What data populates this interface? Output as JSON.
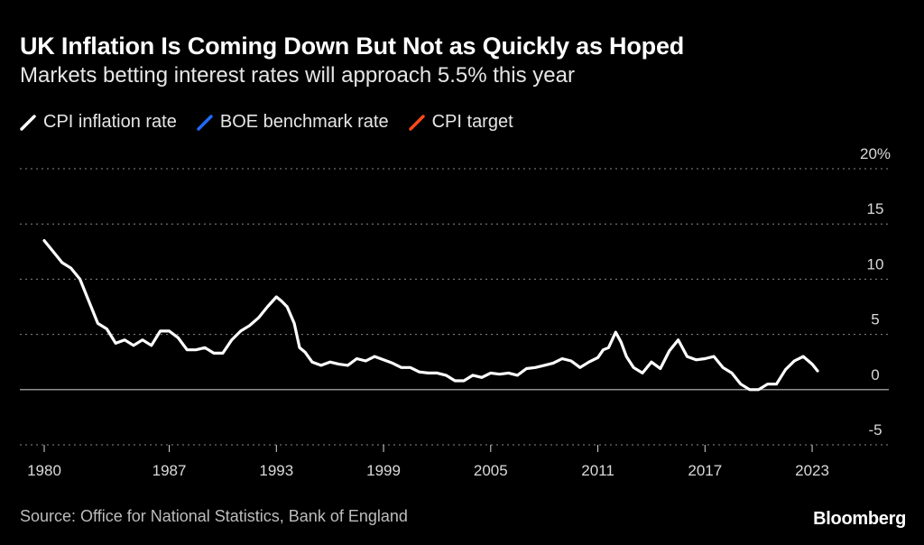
{
  "header": {
    "title": "UK Inflation Is Coming Down But Not as Quickly as Hoped",
    "subtitle": "Markets betting interest rates will approach 5.5% this year"
  },
  "legend": [
    {
      "label": "CPI inflation rate",
      "color": "#ffffff"
    },
    {
      "label": "BOE benchmark rate",
      "color": "#1f6bff"
    },
    {
      "label": "CPI target",
      "color": "#ff4a1a"
    }
  ],
  "footer": {
    "source": "Source: Office for National Statistics, Bank of England",
    "brand": "Bloomberg"
  },
  "chart_data": {
    "type": "line",
    "title": "UK Inflation Is Coming Down But Not as Quickly as Hoped",
    "subtitle": "Markets betting interest rates will approach 5.5% this year",
    "xlabel": "",
    "ylabel": "",
    "xlim": [
      1980,
      2023.3
    ],
    "ylim": [
      -5,
      20
    ],
    "x_ticks": [
      1980,
      1987,
      1993,
      1999,
      2005,
      2011,
      2017,
      2023
    ],
    "y_ticks": [
      -5,
      0,
      5,
      10,
      15,
      20
    ],
    "y_tick_labels": [
      "-5",
      "0",
      "5",
      "10",
      "15",
      "20%"
    ],
    "grid": "horizontal dotted",
    "legend_position": "top-left",
    "series": [
      {
        "name": "CPI inflation rate",
        "color": "#ffffff",
        "points": [
          [
            1980.0,
            13.5
          ],
          [
            1980.5,
            12.5
          ],
          [
            1981.0,
            11.5
          ],
          [
            1981.5,
            11.0
          ],
          [
            1982.0,
            10.0
          ],
          [
            1982.5,
            8.0
          ],
          [
            1983.0,
            6.0
          ],
          [
            1983.5,
            5.5
          ],
          [
            1984.0,
            4.2
          ],
          [
            1984.5,
            4.5
          ],
          [
            1985.0,
            4.0
          ],
          [
            1985.5,
            4.5
          ],
          [
            1986.0,
            4.0
          ],
          [
            1986.5,
            5.3
          ],
          [
            1987.0,
            5.3
          ],
          [
            1987.5,
            4.7
          ],
          [
            1988.0,
            3.6
          ],
          [
            1988.5,
            3.6
          ],
          [
            1989.0,
            3.8
          ],
          [
            1989.5,
            3.3
          ],
          [
            1990.0,
            3.3
          ],
          [
            1990.5,
            4.5
          ],
          [
            1991.0,
            5.3
          ],
          [
            1991.5,
            5.8
          ],
          [
            1992.0,
            6.5
          ],
          [
            1992.5,
            7.5
          ],
          [
            1993.0,
            8.4
          ],
          [
            1993.3,
            8.0
          ],
          [
            1993.6,
            7.5
          ],
          [
            1994.0,
            6.0
          ],
          [
            1994.3,
            3.8
          ],
          [
            1994.6,
            3.4
          ],
          [
            1995.0,
            2.5
          ],
          [
            1995.5,
            2.2
          ],
          [
            1996.0,
            2.5
          ],
          [
            1996.5,
            2.3
          ],
          [
            1997.0,
            2.2
          ],
          [
            1997.5,
            2.8
          ],
          [
            1998.0,
            2.6
          ],
          [
            1998.5,
            3.0
          ],
          [
            1999.0,
            2.7
          ],
          [
            1999.5,
            2.4
          ],
          [
            2000.0,
            2.0
          ],
          [
            2000.5,
            2.0
          ],
          [
            2001.0,
            1.6
          ],
          [
            2001.5,
            1.5
          ],
          [
            2002.0,
            1.5
          ],
          [
            2002.5,
            1.3
          ],
          [
            2003.0,
            0.8
          ],
          [
            2003.5,
            0.8
          ],
          [
            2004.0,
            1.3
          ],
          [
            2004.5,
            1.1
          ],
          [
            2005.0,
            1.5
          ],
          [
            2005.5,
            1.4
          ],
          [
            2006.0,
            1.5
          ],
          [
            2006.5,
            1.3
          ],
          [
            2007.0,
            1.9
          ],
          [
            2007.5,
            2.0
          ],
          [
            2008.0,
            2.2
          ],
          [
            2008.5,
            2.4
          ],
          [
            2009.0,
            2.8
          ],
          [
            2009.5,
            2.6
          ],
          [
            2010.0,
            2.0
          ],
          [
            2010.5,
            2.5
          ],
          [
            2011.0,
            2.9
          ],
          [
            2011.3,
            3.6
          ],
          [
            2011.6,
            3.8
          ],
          [
            2012.0,
            5.2
          ],
          [
            2012.3,
            4.3
          ],
          [
            2012.6,
            3.0
          ],
          [
            2013.0,
            2.0
          ],
          [
            2013.5,
            1.5
          ],
          [
            2014.0,
            2.5
          ],
          [
            2014.5,
            1.9
          ],
          [
            2015.0,
            3.5
          ],
          [
            2015.5,
            4.5
          ],
          [
            2016.0,
            3.0
          ],
          [
            2016.5,
            2.7
          ],
          [
            2017.0,
            2.8
          ],
          [
            2017.5,
            3.0
          ],
          [
            2018.0,
            2.0
          ],
          [
            2018.5,
            1.5
          ],
          [
            2019.0,
            0.5
          ],
          [
            2019.5,
            0.0
          ],
          [
            2020.0,
            0.0
          ],
          [
            2020.5,
            0.5
          ],
          [
            2021.0,
            0.5
          ],
          [
            2021.5,
            1.8
          ],
          [
            2022.0,
            2.6
          ],
          [
            2022.5,
            3.0
          ],
          [
            2023.0,
            2.3
          ],
          [
            2023.3,
            1.7
          ]
        ]
      }
    ]
  }
}
